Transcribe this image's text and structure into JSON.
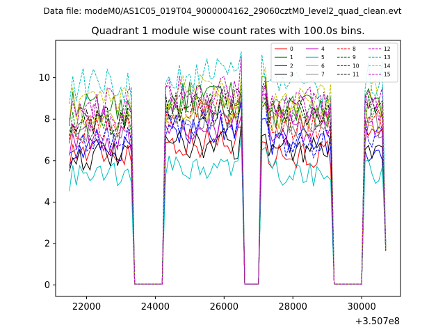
{
  "suptitle": "Data file: modeM0/AS1C05_019T04_9000004162_29060cztM0_level2_quad_clean.evt",
  "chart_data": {
    "type": "line",
    "title": "Quadrant 1 module wise count rates with 100.0s bins.",
    "xlabel": "",
    "ylabel": "",
    "x_offset_label": "+3.507e8",
    "xlim": [
      21100,
      31130
    ],
    "ylim": [
      -0.55,
      11.8
    ],
    "xticks": [
      22000,
      24000,
      26000,
      28000,
      30000
    ],
    "xtick_labels": [
      "22000",
      "24000",
      "26000",
      "28000",
      "30000"
    ],
    "yticks": [
      0,
      2,
      4,
      6,
      8,
      10
    ],
    "ytick_labels": [
      "0",
      "2",
      "4",
      "6",
      "8",
      "10"
    ],
    "legend_position": "top-right",
    "segments": [
      {
        "x_start": 21500,
        "x_end": 23300,
        "step": 100
      },
      {
        "x_start": 24300,
        "x_end": 26500,
        "step": 100
      },
      {
        "x_start": 27100,
        "x_end": 29100,
        "step": 100
      },
      {
        "x_start": 30100,
        "x_end": 30600,
        "step": 100
      }
    ],
    "series": [
      {
        "name": "0",
        "color": "#ff0000",
        "dash": false,
        "levels": [
          6.4,
          6.9,
          6.3,
          6.9
        ]
      },
      {
        "name": "1",
        "color": "#008000",
        "dash": false,
        "levels": [
          8.5,
          9.0,
          8.4,
          8.7
        ]
      },
      {
        "name": "2",
        "color": "#0000ff",
        "dash": false,
        "levels": [
          6.5,
          7.6,
          6.9,
          6.4
        ]
      },
      {
        "name": "3",
        "color": "#000000",
        "dash": false,
        "levels": [
          6.2,
          6.8,
          6.6,
          6.8
        ]
      },
      {
        "name": "4",
        "color": "#bf00bf",
        "dash": false,
        "levels": [
          7.0,
          7.7,
          7.5,
          7.5
        ]
      },
      {
        "name": "5",
        "color": "#00bfbf",
        "dash": false,
        "levels": [
          5.2,
          5.6,
          5.4,
          5.4
        ]
      },
      {
        "name": "6",
        "color": "#bfbf00",
        "dash": false,
        "levels": [
          7.9,
          8.5,
          8.0,
          8.2
        ]
      },
      {
        "name": "7",
        "color": "#808080",
        "dash": false,
        "levels": [
          7.7,
          8.3,
          7.8,
          7.9
        ]
      },
      {
        "name": "8",
        "color": "#ff0000",
        "dash": true,
        "levels": [
          7.6,
          8.4,
          7.8,
          7.8
        ]
      },
      {
        "name": "9",
        "color": "#008000",
        "dash": true,
        "levels": [
          7.8,
          8.6,
          8.2,
          8.4
        ]
      },
      {
        "name": "10",
        "color": "#0000ff",
        "dash": true,
        "levels": [
          7.1,
          7.9,
          6.9,
          7.4
        ]
      },
      {
        "name": "11",
        "color": "#000000",
        "dash": true,
        "levels": [
          8.0,
          8.7,
          8.4,
          8.6
        ]
      },
      {
        "name": "12",
        "color": "#bf00bf",
        "dash": true,
        "levels": [
          8.8,
          9.4,
          8.7,
          9.0
        ]
      },
      {
        "name": "13",
        "color": "#00bfbf",
        "dash": true,
        "levels": [
          9.6,
          10.1,
          9.4,
          9.9
        ]
      },
      {
        "name": "14",
        "color": "#bfbf00",
        "dash": true,
        "levels": [
          8.7,
          9.3,
          8.9,
          9.1
        ]
      },
      {
        "name": "15",
        "color": "#bf00bf",
        "dash": true,
        "levels": [
          8.2,
          9.0,
          8.5,
          8.6
        ]
      }
    ]
  }
}
